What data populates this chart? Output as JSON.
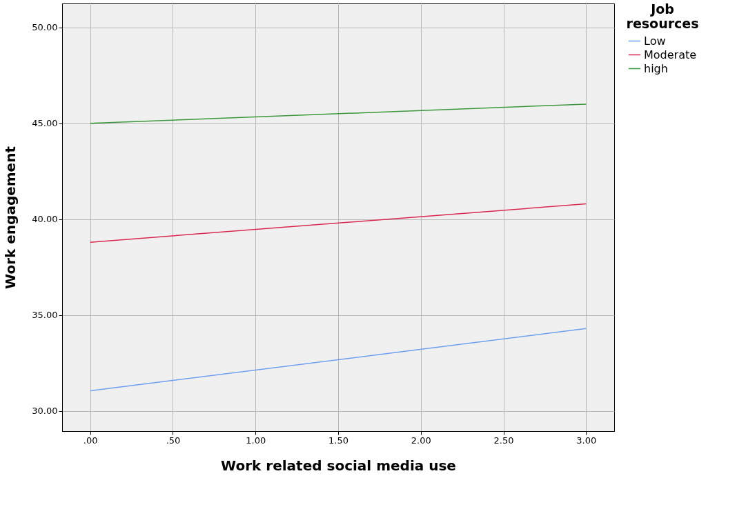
{
  "chart_data": {
    "type": "line",
    "xlabel": "Work related social media use",
    "ylabel": "Work engagement",
    "legend_title": "Job resources",
    "series": [
      {
        "name": "Low",
        "color": "#6f9ef0",
        "values": [
          31.05,
          34.3
        ]
      },
      {
        "name": "Moderate",
        "color": "#d8284f",
        "values": [
          38.8,
          40.8
        ]
      },
      {
        "name": "high",
        "color": "#3c973c",
        "values": [
          45.0,
          46.0
        ]
      }
    ],
    "x": [
      0,
      3
    ],
    "xlim": [
      -0.17,
      3.17
    ],
    "ylim": [
      28.95,
      51.25
    ],
    "xticks": [
      {
        "value": 0,
        "label": ".00"
      },
      {
        "value": 0.5,
        "label": ".50"
      },
      {
        "value": 1,
        "label": "1.00"
      },
      {
        "value": 1.5,
        "label": "1.50"
      },
      {
        "value": 2,
        "label": "2.00"
      },
      {
        "value": 2.5,
        "label": "2.50"
      },
      {
        "value": 3,
        "label": "3.00"
      }
    ],
    "yticks": [
      {
        "value": 30,
        "label": "30.00"
      },
      {
        "value": 35,
        "label": "35.00"
      },
      {
        "value": 40,
        "label": "40.00"
      },
      {
        "value": 45,
        "label": "45.00"
      },
      {
        "value": 50,
        "label": "50.00"
      }
    ],
    "grid": true,
    "legend": "top right",
    "marker": "none",
    "line_style": "solid"
  }
}
